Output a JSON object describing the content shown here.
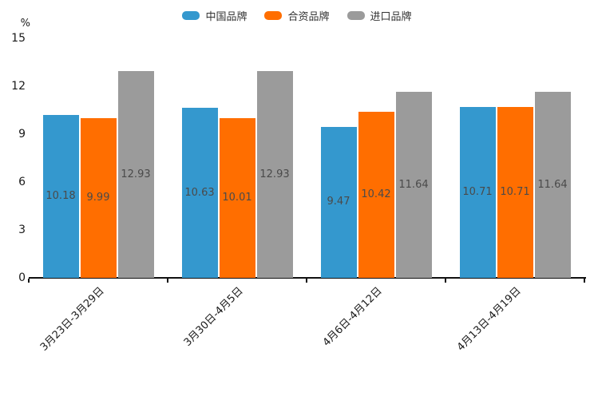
{
  "chart_data": {
    "type": "bar",
    "title": "",
    "unit_label": "%",
    "categories": [
      "3月23日-3月29日",
      "3月30日-4月5日",
      "4月6日-4月12日",
      "4月13日-4月19日"
    ],
    "series": [
      {
        "name": "中国品牌",
        "color": "#3498ce",
        "values": [
          10.18,
          10.63,
          9.47,
          10.71
        ]
      },
      {
        "name": "合资品牌",
        "color": "#ff6e00",
        "values": [
          9.99,
          10.01,
          10.42,
          10.71
        ]
      },
      {
        "name": "进口品牌",
        "color": "#9b9b9b",
        "values": [
          12.93,
          12.93,
          11.64,
          11.64
        ]
      }
    ],
    "ylim": [
      0,
      15
    ],
    "yticks": [
      0,
      3,
      6,
      9,
      12,
      15
    ],
    "grid": false,
    "legend_position": "top",
    "value_labels": true,
    "value_label_color": "#4a4a4a",
    "axis_color": "#111111"
  }
}
